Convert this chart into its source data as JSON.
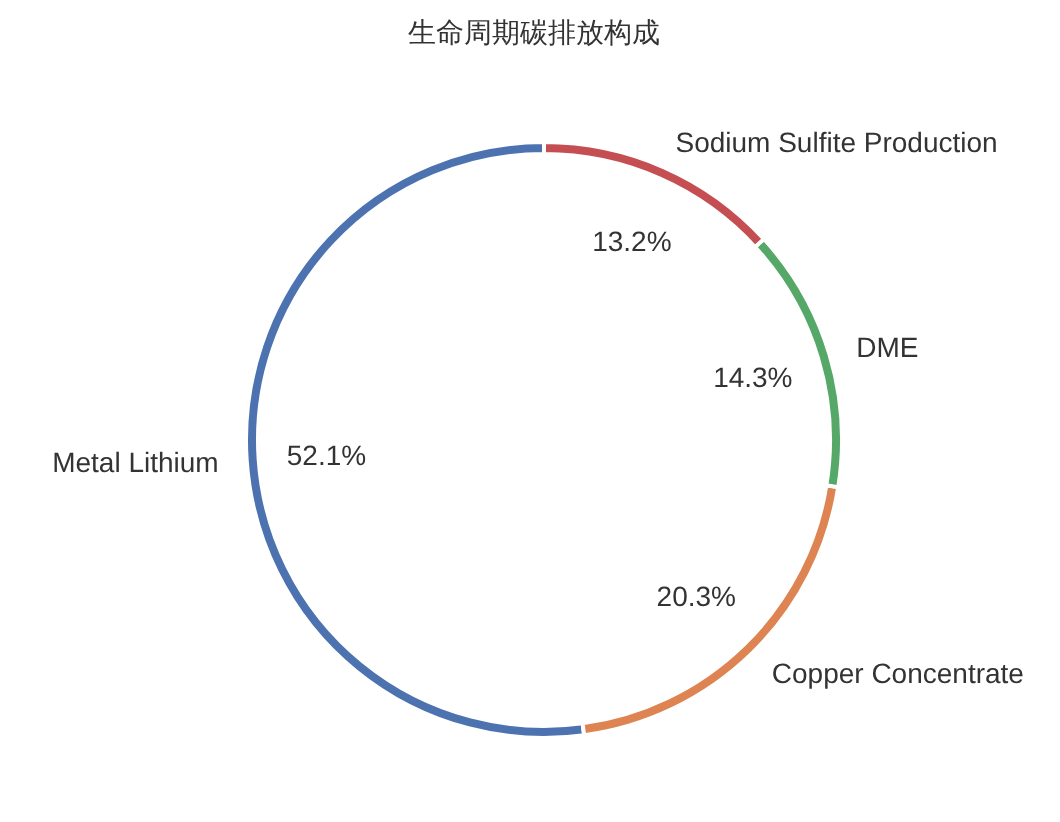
{
  "chart_data": {
    "type": "donut",
    "title": "生命周期碳排放构成",
    "categories": [
      "Metal Lithium",
      "Copper Concentrate",
      "DME",
      "Sodium Sulfite Production"
    ],
    "values": [
      52.1,
      20.3,
      14.3,
      13.2
    ],
    "colors": [
      "#4c72b0",
      "#dd8452",
      "#55a868",
      "#c44e52"
    ],
    "value_labels": [
      "52.1%",
      "20.3%",
      "14.3%",
      "13.2%"
    ]
  }
}
